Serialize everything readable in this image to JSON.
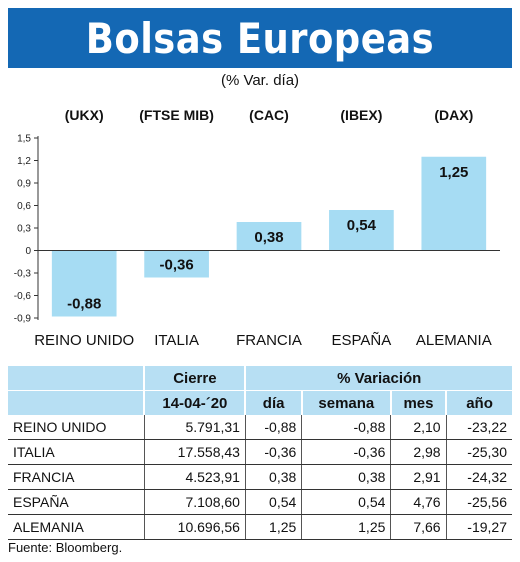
{
  "header": {
    "title": "Bolsas Europeas",
    "subtitle": "(% Var. día)"
  },
  "chart_data": {
    "type": "bar",
    "categories": [
      "REINO UNIDO",
      "ITALIA",
      "FRANCIA",
      "ESPAÑA",
      "ALEMANIA"
    ],
    "index_codes": [
      "(UKX)",
      "(FTSE MIB)",
      "(CAC)",
      "(IBEX)",
      "(DAX)"
    ],
    "values": [
      -0.88,
      -0.36,
      0.38,
      0.54,
      1.25
    ],
    "value_labels": [
      "-0,88",
      "-0,36",
      "0,38",
      "0,54",
      "1,25"
    ],
    "yticks": [
      1.5,
      1.2,
      0.9,
      0.6,
      0.3,
      0,
      -0.3,
      -0.6,
      -0.9
    ],
    "ytick_labels": [
      "1,5",
      "1,2",
      "0,9",
      "0,6",
      "0,3",
      "0",
      "-0,3",
      "-0,6",
      "-0,9"
    ],
    "ylim": [
      -0.9,
      1.5
    ],
    "bar_color": "#a6dcf3",
    "grid": false
  },
  "table": {
    "header_cierre": "Cierre",
    "header_date": "14-04-´20",
    "header_variacion": "% Variación",
    "columns": [
      "día",
      "semana",
      "mes",
      "año"
    ],
    "rows": [
      {
        "name": "REINO UNIDO",
        "cierre": "5.791,31",
        "dia": "-0,88",
        "semana": "-0,88",
        "mes": "2,10",
        "ano": "-23,22"
      },
      {
        "name": "ITALIA",
        "cierre": "17.558,43",
        "dia": "-0,36",
        "semana": "-0,36",
        "mes": "2,98",
        "ano": "-25,30"
      },
      {
        "name": "FRANCIA",
        "cierre": "4.523,91",
        "dia": "0,38",
        "semana": "0,38",
        "mes": "2,91",
        "ano": "-24,32"
      },
      {
        "name": "ESPAÑA",
        "cierre": "7.108,60",
        "dia": "0,54",
        "semana": "0,54",
        "mes": "4,76",
        "ano": "-25,56"
      },
      {
        "name": "ALEMANIA",
        "cierre": "10.696,56",
        "dia": "1,25",
        "semana": "1,25",
        "mes": "7,66",
        "ano": "-19,27"
      }
    ]
  },
  "source": "Fuente: Bloomberg.",
  "colors": {
    "banner": "#1468b4",
    "table_header": "#b7dff3"
  }
}
